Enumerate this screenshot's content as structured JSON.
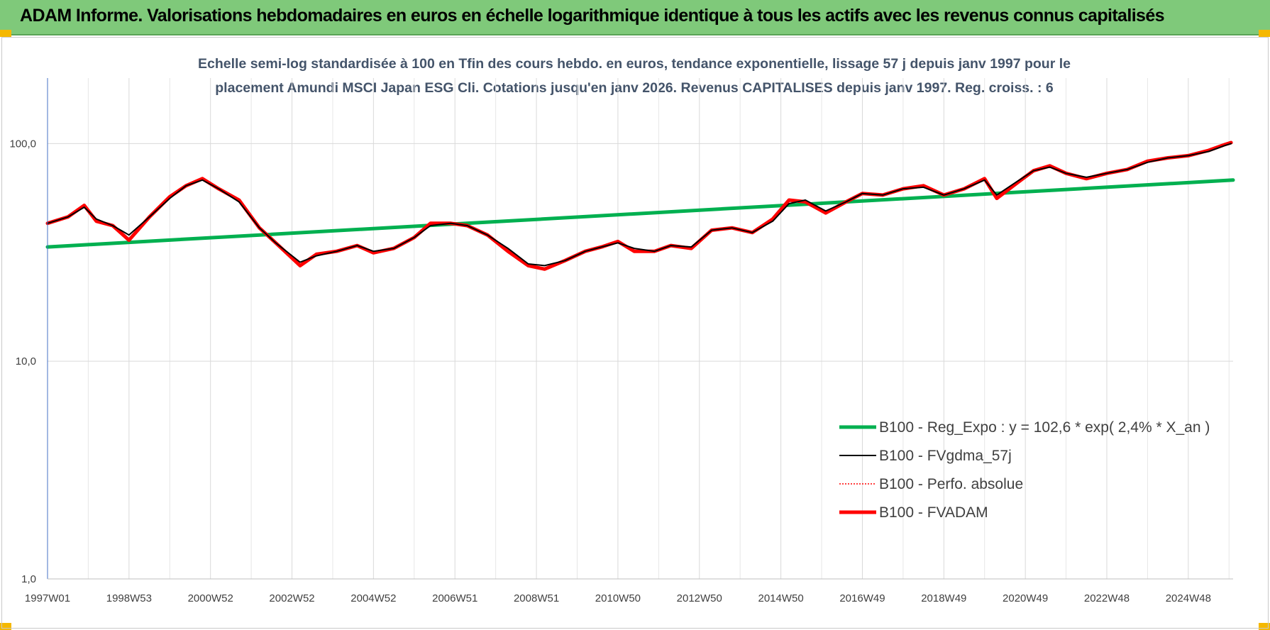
{
  "header": {
    "title": "ADAM Informe. Valorisations hebdomadaires en euros en échelle logarithmique identique à tous les actifs avec les revenus connus capitalisés"
  },
  "colors": {
    "header_bg": "#7fc97a",
    "corner_accent": "#f5b800",
    "trend": "#00b050",
    "smoothed": "#000000",
    "perf": "#ff0000",
    "fvadam": "#ff0000"
  },
  "chart_data": {
    "type": "line",
    "subtitle_line1": "Echelle semi-log standardisée à 100 en Tfin des cours hebdo. en euros, tendance exponentielle, lissage 57 j depuis janv 1997 pour le",
    "subtitle_line2": "placement Amundi MSCI Japan ESG Cli. Cotations jusqu'en janv 2026. Revenus CAPITALISES depuis janv 1997. Reg. croiss. : 6",
    "y_scale": "log",
    "ylim": [
      1,
      200
    ],
    "xlim": [
      1997.0,
      2026.1
    ],
    "y_ticks": [
      {
        "value": 1,
        "label": "1,0"
      },
      {
        "value": 10,
        "label": "10,0"
      },
      {
        "value": 100,
        "label": "100,0"
      }
    ],
    "x_ticks": [
      {
        "value": 1997.0,
        "label": "1997W01"
      },
      {
        "value": 1999.0,
        "label": "1998W53"
      },
      {
        "value": 2001.0,
        "label": "2000W52"
      },
      {
        "value": 2003.0,
        "label": "2002W52"
      },
      {
        "value": 2005.0,
        "label": "2004W52"
      },
      {
        "value": 2007.0,
        "label": "2006W51"
      },
      {
        "value": 2009.0,
        "label": "2008W51"
      },
      {
        "value": 2011.0,
        "label": "2010W50"
      },
      {
        "value": 2013.0,
        "label": "2012W50"
      },
      {
        "value": 2015.0,
        "label": "2014W50"
      },
      {
        "value": 2017.0,
        "label": "2016W49"
      },
      {
        "value": 2019.0,
        "label": "2018W49"
      },
      {
        "value": 2021.0,
        "label": "2020W49"
      },
      {
        "value": 2023.0,
        "label": "2022W48"
      },
      {
        "value": 2025.0,
        "label": "2024W48"
      }
    ],
    "grid": true,
    "legend_position": "bottom-right",
    "series": [
      {
        "name": "B100 - Reg_Expo : y = 102,6 * exp( 2,4% *  X_an )",
        "color": "#00b050",
        "style": "solid-thick",
        "x": [
          1997.0,
          2026.1
        ],
        "y": [
          33.5,
          68.0
        ]
      },
      {
        "name": "B100 - FVgdma_57j",
        "color": "#000000",
        "style": "solid",
        "x": [
          1997.0,
          1997.5,
          1997.9,
          1998.2,
          1998.6,
          1999.0,
          1999.5,
          2000.0,
          2000.4,
          2000.8,
          2001.2,
          2001.7,
          2002.2,
          2002.6,
          2003.2,
          2003.6,
          2004.1,
          2004.6,
          2005.0,
          2005.5,
          2006.0,
          2006.4,
          2006.9,
          2007.3,
          2007.8,
          2008.3,
          2008.8,
          2009.2,
          2009.7,
          2010.2,
          2010.6,
          2011.0,
          2011.4,
          2011.9,
          2012.3,
          2012.8,
          2013.3,
          2013.8,
          2014.3,
          2014.8,
          2015.2,
          2015.6,
          2016.1,
          2016.6,
          2017.0,
          2017.5,
          2018.0,
          2018.5,
          2019.0,
          2019.5,
          2020.0,
          2020.3,
          2020.8,
          2021.2,
          2021.6,
          2022.0,
          2022.5,
          2023.0,
          2023.5,
          2024.0,
          2024.5,
          2025.0,
          2025.5,
          2025.9,
          2026.05
        ],
        "y": [
          43,
          46,
          51,
          45,
          42,
          38,
          46,
          56,
          64,
          68,
          62,
          54,
          41,
          35,
          28.5,
          30.5,
          32,
          34,
          32,
          33,
          37,
          42,
          43,
          42,
          38,
          33,
          28,
          27.5,
          29,
          32,
          33.5,
          35,
          33,
          32,
          34,
          33.5,
          40,
          41,
          39,
          44,
          53,
          55,
          49,
          54,
          59,
          58,
          62,
          63,
          58,
          62,
          68,
          58,
          67,
          75,
          78,
          73,
          70,
          73,
          76,
          82,
          86,
          88,
          92,
          98,
          100
        ]
      },
      {
        "name": "B100 - Perfo. absolue",
        "color": "#ff0000",
        "style": "dotted",
        "x": [
          1997.0,
          1997.5,
          1997.9,
          1998.2,
          1998.6,
          1999.0,
          1999.5,
          2000.0,
          2000.4,
          2000.8,
          2001.2,
          2001.7,
          2002.2,
          2002.6,
          2003.2,
          2003.6,
          2004.1,
          2004.6,
          2005.0,
          2005.5,
          2006.0,
          2006.4,
          2006.9,
          2007.3,
          2007.8,
          2008.3,
          2008.8,
          2009.2,
          2009.7,
          2010.2,
          2010.6,
          2011.0,
          2011.4,
          2011.9,
          2012.3,
          2012.8,
          2013.3,
          2013.8,
          2014.3,
          2014.8,
          2015.2,
          2015.6,
          2016.1,
          2016.6,
          2017.0,
          2017.5,
          2018.0,
          2018.5,
          2019.0,
          2019.5,
          2020.0,
          2020.3,
          2020.8,
          2021.2,
          2021.6,
          2022.0,
          2022.5,
          2023.0,
          2023.5,
          2024.0,
          2024.5,
          2025.0,
          2025.5,
          2025.9,
          2026.05
        ],
        "y": [
          43,
          46,
          52,
          44,
          42,
          36,
          46,
          57,
          64,
          69,
          62,
          55,
          41,
          35,
          27.5,
          31,
          32,
          34,
          31.5,
          33,
          37,
          43,
          43,
          42,
          38,
          32,
          27.5,
          26.5,
          29,
          32,
          33.5,
          35.5,
          32,
          32,
          34,
          33,
          40,
          41,
          39,
          45,
          55,
          54,
          48,
          54,
          59,
          58,
          62,
          64,
          58,
          62,
          69,
          56,
          66,
          75,
          79,
          73,
          69,
          73,
          76,
          83,
          86,
          88,
          93,
          99,
          101
        ]
      },
      {
        "name": "B100 - FVADAM",
        "color": "#ff0000",
        "style": "solid-thick",
        "x": [
          1997.0,
          1997.5,
          1997.9,
          1998.2,
          1998.6,
          1999.0,
          1999.5,
          2000.0,
          2000.4,
          2000.8,
          2001.2,
          2001.7,
          2002.2,
          2002.6,
          2003.2,
          2003.6,
          2004.1,
          2004.6,
          2005.0,
          2005.5,
          2006.0,
          2006.4,
          2006.9,
          2007.3,
          2007.8,
          2008.3,
          2008.8,
          2009.2,
          2009.7,
          2010.2,
          2010.6,
          2011.0,
          2011.4,
          2011.9,
          2012.3,
          2012.8,
          2013.3,
          2013.8,
          2014.3,
          2014.8,
          2015.2,
          2015.6,
          2016.1,
          2016.6,
          2017.0,
          2017.5,
          2018.0,
          2018.5,
          2019.0,
          2019.5,
          2020.0,
          2020.3,
          2020.8,
          2021.2,
          2021.6,
          2022.0,
          2022.5,
          2023.0,
          2023.5,
          2024.0,
          2024.5,
          2025.0,
          2025.5,
          2025.9,
          2026.05
        ],
        "y": [
          43,
          46,
          52,
          44,
          42,
          36,
          46,
          57,
          64,
          69,
          62,
          55,
          41,
          35,
          27.5,
          31,
          32,
          34,
          31.5,
          33,
          37,
          43,
          43,
          42,
          38,
          32,
          27.5,
          26.5,
          29,
          32,
          33.5,
          35.5,
          32,
          32,
          34,
          33,
          40,
          41,
          39,
          45,
          55,
          54,
          48,
          54,
          59,
          58,
          62,
          64,
          58,
          62,
          69,
          56,
          66,
          75,
          79,
          73,
          69,
          73,
          76,
          83,
          86,
          88,
          93,
          99,
          101
        ]
      }
    ]
  }
}
